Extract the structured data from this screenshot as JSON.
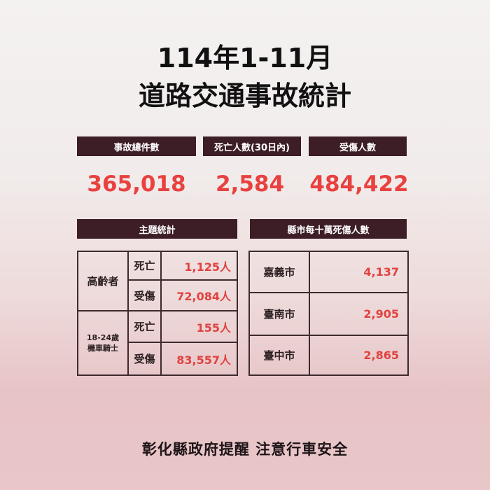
{
  "title": {
    "line1": "114年1-11月",
    "line2": "道路交通事故統計"
  },
  "summary": [
    {
      "label": "事故總件數",
      "value": "365,018"
    },
    {
      "label": "死亡人數(30日內)",
      "value": "2,584"
    },
    {
      "label": "受傷人數",
      "value": "484,422"
    }
  ],
  "topic": {
    "header": "主題統計",
    "groups": [
      {
        "name": "高齡者",
        "rows": [
          {
            "type": "死亡",
            "value": "1,125人"
          },
          {
            "type": "受傷",
            "value": "72,084人"
          }
        ]
      },
      {
        "name_line1": "18-24歲",
        "name_line2": "機車騎士",
        "rows": [
          {
            "type": "死亡",
            "value": "155人"
          },
          {
            "type": "受傷",
            "value": "83,557人"
          }
        ]
      }
    ]
  },
  "county": {
    "header": "縣市每十萬死傷人數",
    "rows": [
      {
        "city": "嘉義市",
        "value": "4,137"
      },
      {
        "city": "臺南市",
        "value": "2,905"
      },
      {
        "city": "臺中市",
        "value": "2,865"
      }
    ]
  },
  "footer": "彰化縣政府提醒 注意行車安全",
  "colors": {
    "header_bg": "#3d1d26",
    "accent": "#e8413f"
  }
}
